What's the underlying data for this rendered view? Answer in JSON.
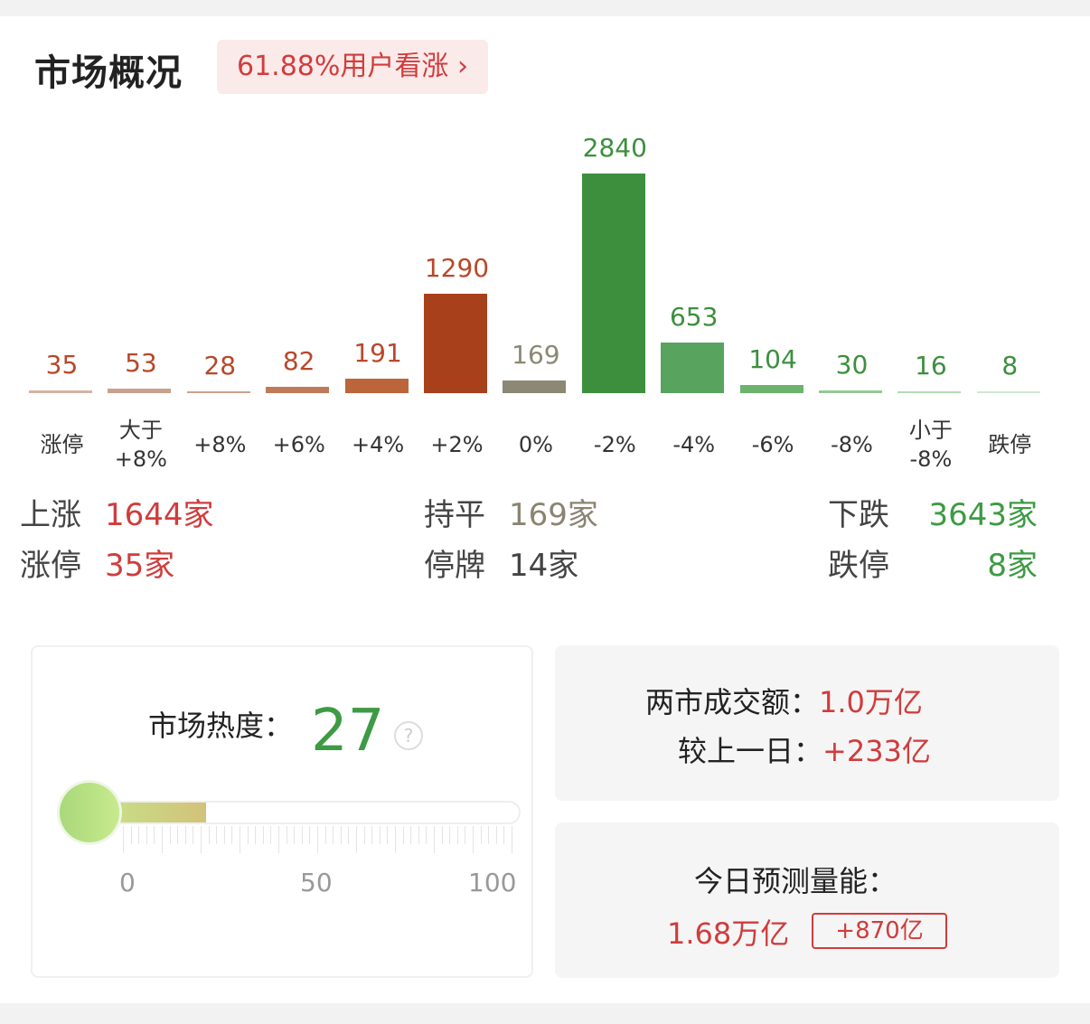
{
  "header": {
    "title": "市场概况",
    "sentiment": "61.88%用户看涨",
    "chevron": "chevron-right-icon"
  },
  "chart_data": {
    "type": "bar",
    "categories": [
      "涨停",
      "大于+8%",
      "+8%",
      "+6%",
      "+4%",
      "+2%",
      "0%",
      "-2%",
      "-4%",
      "-6%",
      "-8%",
      "小于-8%",
      "跌停"
    ],
    "category_lines": [
      [
        "涨停"
      ],
      [
        "大于",
        "+8%"
      ],
      [
        "+8%"
      ],
      [
        "+6%"
      ],
      [
        "+4%"
      ],
      [
        "+2%"
      ],
      [
        "0%"
      ],
      [
        "-2%"
      ],
      [
        "-4%"
      ],
      [
        "-6%"
      ],
      [
        "-8%"
      ],
      [
        "小于",
        "-8%"
      ],
      [
        "跌停"
      ]
    ],
    "values": [
      35,
      53,
      28,
      82,
      191,
      1290,
      169,
      2840,
      653,
      104,
      30,
      16,
      8
    ],
    "colors": [
      "#d6b3a3",
      "#caa08e",
      "#c9a291",
      "#bf7a58",
      "#bd653a",
      "#a8401c",
      "#8b8873",
      "#3d8f3e",
      "#58a45e",
      "#6cb36e",
      "#94c995",
      "#b5dab6",
      "#d0e8d0"
    ],
    "label_colors": [
      "#b8482a",
      "#b8482a",
      "#b8482a",
      "#b8482a",
      "#b8482a",
      "#b8482a",
      "#8b8873",
      "#3d8f3e",
      "#3d8f3e",
      "#3d8f3e",
      "#3d8f3e",
      "#3d8f3e",
      "#3d8f3e"
    ]
  },
  "stats": {
    "up_label": "上涨",
    "up": "1644家",
    "limit_up_label": "涨停",
    "limit_up": "35家",
    "flat_label": "持平",
    "flat": "169家",
    "suspended_label": "停牌",
    "suspended": "14家",
    "down_label": "下跌",
    "down": "3643家",
    "limit_down_label": "跌停",
    "limit_down": "8家"
  },
  "heat": {
    "label": "市场热度：",
    "value": "27",
    "level": 27,
    "help_icon": "question-circle-icon",
    "ticks": [
      "0",
      "50",
      "100"
    ]
  },
  "turnover": {
    "label": "两市成交额：",
    "value": "1.0万亿",
    "diff_label": "较上一日：",
    "diff": "+233亿"
  },
  "forecast": {
    "label": "今日预测量能：",
    "value": "1.68万亿",
    "diff": "+870亿"
  }
}
